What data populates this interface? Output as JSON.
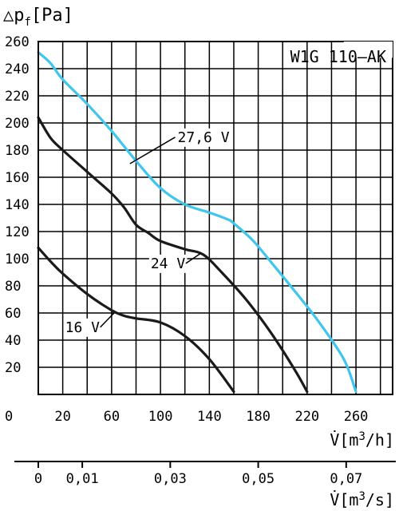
{
  "chart_data": {
    "type": "line",
    "model_label": "W1G 110–AK",
    "ylabel": {
      "symbol": "△p",
      "sub": "f",
      "unit": "[Pa]"
    },
    "xlabel": {
      "symbol": "V̇",
      "unit_pre": "[m",
      "unit_sup": "3",
      "unit_post": "/h]"
    },
    "xlabel2": {
      "symbol": "V̇",
      "unit_pre": "[m",
      "unit_sup": "3",
      "unit_post": "/s]"
    },
    "xlim": [
      0,
      290
    ],
    "ylim": [
      0,
      260
    ],
    "grid": true,
    "y_ticks": [
      20,
      40,
      60,
      80,
      100,
      120,
      140,
      160,
      180,
      200,
      220,
      240,
      260
    ],
    "y_zero_label": "0",
    "x_ticks": [
      0,
      20,
      60,
      100,
      140,
      180,
      220,
      260
    ],
    "x2_ticks": [
      {
        "label": "0",
        "value_m3h": 0
      },
      {
        "label": "0,01",
        "value_m3h": 36
      },
      {
        "label": "0,03",
        "value_m3h": 108
      },
      {
        "label": "0,05",
        "value_m3h": 180
      },
      {
        "label": "0,07",
        "value_m3h": 252
      }
    ],
    "series": [
      {
        "name": "27,6 V",
        "color": "#3ec6ee",
        "points": [
          [
            0,
            252
          ],
          [
            10,
            244
          ],
          [
            20,
            232
          ],
          [
            40,
            214
          ],
          [
            60,
            194
          ],
          [
            80,
            172
          ],
          [
            100,
            152
          ],
          [
            120,
            140
          ],
          [
            140,
            134
          ],
          [
            155,
            129
          ],
          [
            160,
            126
          ],
          [
            175,
            114
          ],
          [
            190,
            98
          ],
          [
            210,
            76
          ],
          [
            230,
            53
          ],
          [
            250,
            26
          ],
          [
            260,
            2
          ]
        ]
      },
      {
        "name": "24 V",
        "color": "#1a1a1a",
        "points": [
          [
            0,
            204
          ],
          [
            10,
            189
          ],
          [
            20,
            180
          ],
          [
            40,
            164
          ],
          [
            60,
            148
          ],
          [
            70,
            138
          ],
          [
            80,
            125
          ],
          [
            90,
            119
          ],
          [
            100,
            113
          ],
          [
            120,
            107
          ],
          [
            135,
            103
          ],
          [
            150,
            90
          ],
          [
            170,
            70
          ],
          [
            190,
            46
          ],
          [
            210,
            18
          ],
          [
            220,
            2
          ]
        ]
      },
      {
        "name": "16 V",
        "color": "#1a1a1a",
        "points": [
          [
            0,
            108
          ],
          [
            10,
            98
          ],
          [
            20,
            89
          ],
          [
            40,
            74
          ],
          [
            60,
            62
          ],
          [
            70,
            58
          ],
          [
            80,
            56
          ],
          [
            100,
            53
          ],
          [
            120,
            43
          ],
          [
            140,
            26
          ],
          [
            160,
            2
          ]
        ]
      }
    ],
    "labels": [
      {
        "text": "27,6 V",
        "x": 114,
        "y": 186,
        "anchor": [
          75,
          170
        ]
      },
      {
        "text": "24 V",
        "x": 92,
        "y": 93,
        "anchor": [
          133,
          104
        ]
      },
      {
        "text": "16 V",
        "x": 22,
        "y": 46,
        "anchor": [
          62,
          60
        ]
      }
    ]
  }
}
